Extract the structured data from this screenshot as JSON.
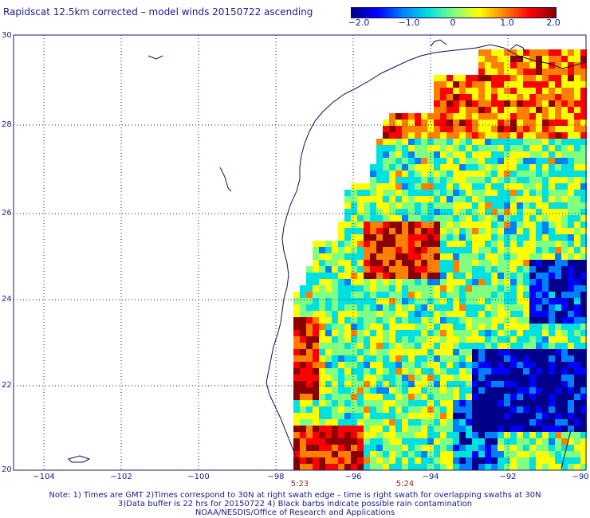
{
  "title": "Rapidscat 12.5km corrected – model winds 20150722 ascending",
  "colorbar": {
    "ticks": [
      "−2.0",
      "−1.0",
      "0",
      "1.0",
      "2.0"
    ],
    "colors": [
      "#00008b",
      "#0000ff",
      "#0080ff",
      "#00e0e0",
      "#80ff80",
      "#ffff00",
      "#ff8000",
      "#ff0000",
      "#8b0000"
    ]
  },
  "axes": {
    "lat_labels": [
      "30",
      "28",
      "26",
      "24",
      "22",
      "20"
    ],
    "lon_labels": [
      "−104",
      "−102",
      "−100",
      "−98",
      "−96",
      "−94",
      "−92",
      "−90"
    ]
  },
  "swath_times": [
    "5:23",
    "5:24"
  ],
  "notes": [
    "Note: 1) Times are GMT 2)Times correspond to 30N at right swath edge – time is right swath for overlapping swaths at 30N",
    "3)Data buffer is 22 hrs for 20150722 4) Black barbs indicate possible rain contamination",
    "NOAA/NESDIS/Office of Research and Applications"
  ],
  "colors": {
    "coastline": "#0d0d5c",
    "grid": "#1a1a6c"
  }
}
